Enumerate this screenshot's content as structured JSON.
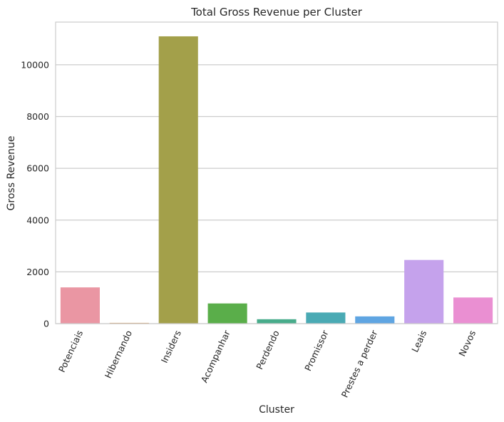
{
  "chart_data": {
    "type": "bar",
    "title": "Total Gross Revenue per Cluster",
    "xlabel": "Cluster",
    "ylabel": "Gross Revenue",
    "categories": [
      "Potenciais",
      "Hibernando",
      "Insiders",
      "Acompanhar",
      "Perdendo",
      "Promissor",
      "Prestes a perder",
      "Leais",
      "Novos"
    ],
    "values": [
      1400,
      30,
      11100,
      780,
      170,
      430,
      280,
      2460,
      1010
    ],
    "colors": [
      "#ea96a3",
      "#d79a5e",
      "#a3a04a",
      "#5aae4a",
      "#48ac8b",
      "#4aaab4",
      "#5fa5e2",
      "#c5a2ec",
      "#ea8fd2"
    ],
    "ylim": [
      0,
      11650
    ],
    "yticks": [
      0,
      2000,
      4000,
      6000,
      8000,
      10000
    ],
    "grid": true
  }
}
